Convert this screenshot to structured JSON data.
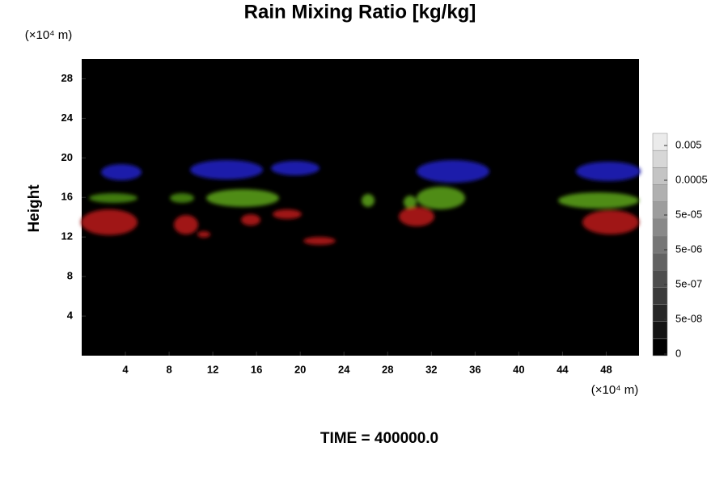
{
  "chart_data": {
    "type": "contour",
    "title": "Rain Mixing Ratio [kg/kg]",
    "y_label": "Height",
    "x_unit": "(×10⁴ m)",
    "y_unit": "(×10⁴ m)",
    "annotation": "TIME = 400000.0",
    "xlim": [
      0,
      51
    ],
    "xticks": [
      4,
      8,
      12,
      16,
      20,
      24,
      28,
      32,
      36,
      40,
      44,
      48
    ],
    "ylim": [
      0,
      30
    ],
    "yticks": [
      4,
      8,
      12,
      16,
      20,
      24,
      28
    ],
    "colorbar_ticks": [
      0,
      {
        "value": 5e-08,
        "label": "5e-08"
      },
      {
        "value": 5e-07,
        "label": "5e-07"
      },
      {
        "value": 5e-06,
        "label": "5e-06"
      },
      {
        "value": 5e-05,
        "label": "5e-05"
      },
      0.0005,
      0.005
    ]
  }
}
